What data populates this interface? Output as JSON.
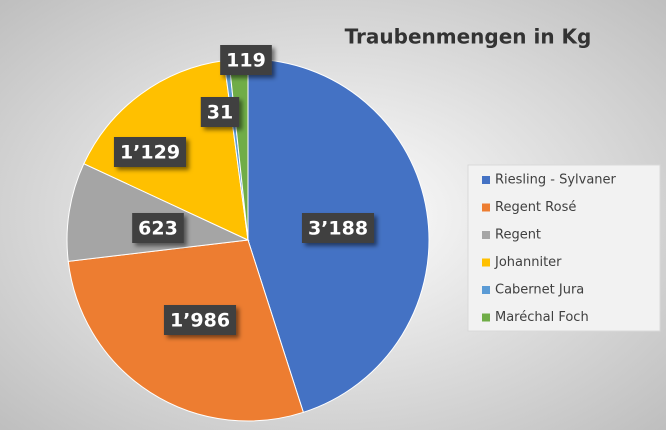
{
  "chart_data": {
    "type": "pie",
    "title": "Traubenmengen in Kg",
    "categories": [
      "Riesling - Sylvaner",
      "Regent Rosé",
      "Regent",
      "Johanniter",
      "Cabernet Jura",
      "Maréchal Foch"
    ],
    "values": [
      3188,
      1986,
      623,
      1129,
      31,
      119
    ],
    "value_labels": [
      "3’188",
      "1’986",
      "623",
      "1’129",
      "31",
      "119"
    ],
    "colors": [
      "#4472c4",
      "#ed7d31",
      "#a5a5a5",
      "#ffc000",
      "#5b9bd5",
      "#70ad47"
    ],
    "legend": "right"
  }
}
